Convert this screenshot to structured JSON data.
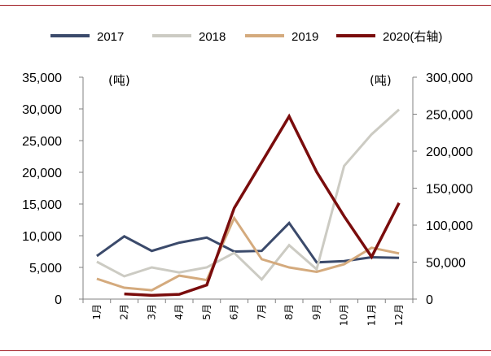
{
  "chart_data": {
    "type": "line",
    "title": "",
    "categories": [
      "1月",
      "2月",
      "3月",
      "4月",
      "5月",
      "6月",
      "7月",
      "8月",
      "9月",
      "10月",
      "11月",
      "12月"
    ],
    "left_axis": {
      "unit": "(吨)",
      "ylim": [
        0,
        35000
      ],
      "ticks": [
        0,
        5000,
        10000,
        15000,
        20000,
        25000,
        30000,
        35000
      ],
      "tick_labels": [
        "0",
        "5,000",
        "10,000",
        "15,000",
        "20,000",
        "25,000",
        "30,000",
        "35,000"
      ]
    },
    "right_axis": {
      "unit": "(吨)",
      "ylim": [
        0,
        300000
      ],
      "ticks": [
        0,
        50000,
        100000,
        150000,
        200000,
        250000,
        300000
      ],
      "tick_labels": [
        "0",
        "50,000",
        "100,000",
        "150,000",
        "200,000",
        "250,000",
        "300,000"
      ]
    },
    "series": [
      {
        "name": "2017",
        "axis": "left",
        "color": "#3b4a6b",
        "values": [
          6800,
          9900,
          7600,
          8900,
          9700,
          7500,
          7600,
          12000,
          5800,
          6000,
          6600,
          6500
        ]
      },
      {
        "name": "2018",
        "axis": "left",
        "color": "#cccbc3",
        "values": [
          5900,
          3600,
          5000,
          4200,
          5000,
          7300,
          3100,
          8500,
          4700,
          21000,
          26000,
          29900
        ]
      },
      {
        "name": "2019",
        "axis": "left",
        "color": "#d4aa7d",
        "values": [
          3200,
          1800,
          1400,
          3700,
          3000,
          12800,
          6300,
          5000,
          4300,
          5500,
          8100,
          7200
        ]
      },
      {
        "name": "2020(右轴)",
        "axis": "right",
        "color": "#7a0c0c",
        "values": [
          null,
          7000,
          5000,
          6500,
          19000,
          123000,
          185000,
          247000,
          172000,
          112000,
          57000,
          130000
        ]
      }
    ],
    "legend": {
      "position": "top",
      "labels": [
        "2017",
        "2018",
        "2019",
        "2020(右轴)"
      ]
    },
    "grid": false
  }
}
